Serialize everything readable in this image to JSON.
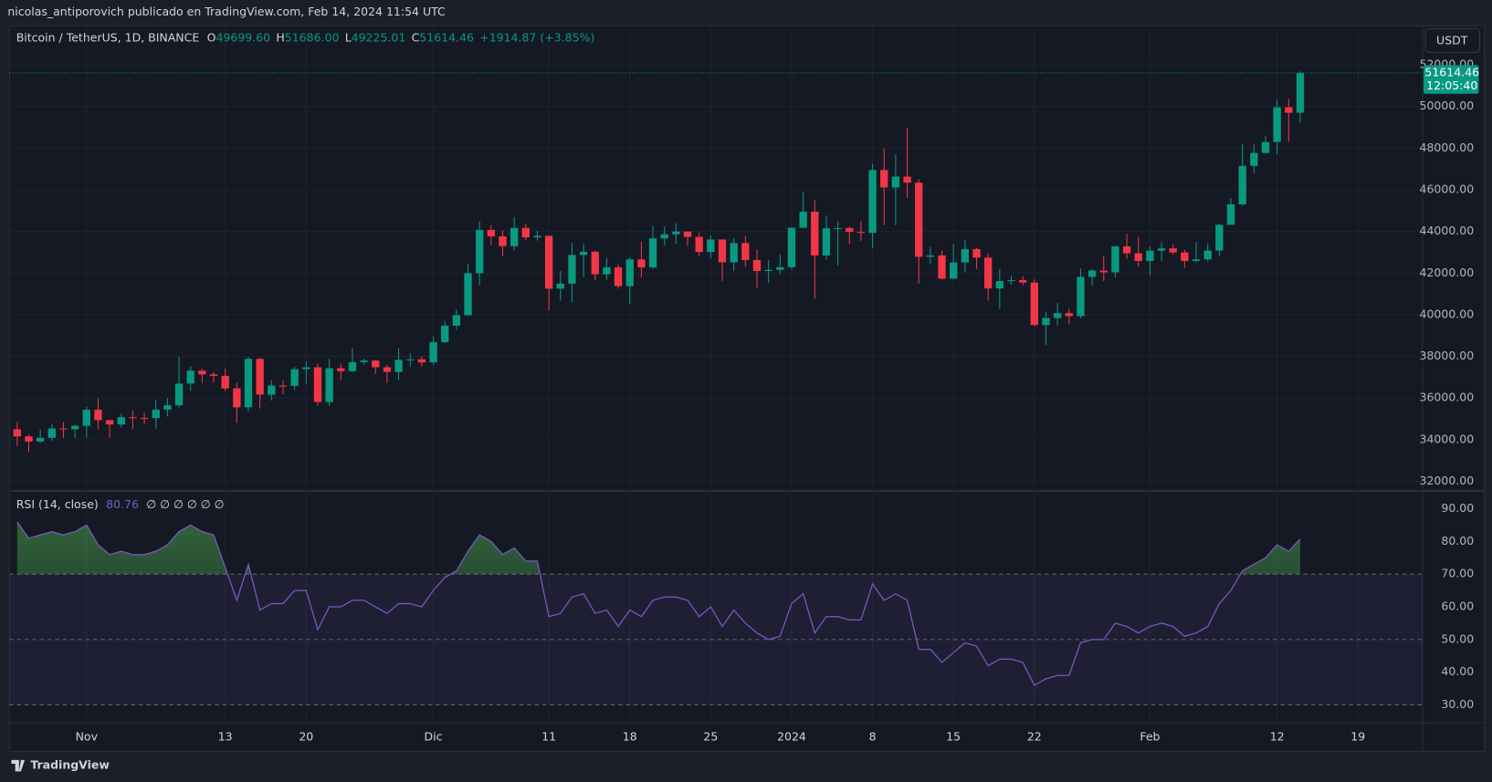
{
  "page": {
    "header": "nicolas_antiporovich publicado en TradingView.com, Feb 14, 2024 11:54 UTC",
    "footer": "TradingView",
    "currency": "USDT"
  },
  "chart_data": [
    {
      "type": "candlestick",
      "symbol": "Bitcoin / TetherUS, 1D, BINANCE",
      "ohlc_header": [
        {
          "key": "O",
          "value": "49699.60"
        },
        {
          "key": "H",
          "value": "51686.00"
        },
        {
          "key": "L",
          "value": "49225.01"
        },
        {
          "key": "C",
          "value": "51614.46"
        }
      ],
      "change": "+1914.87 (+3.85%)",
      "countdown": "12:05:40",
      "up_color": "#089981",
      "down_color": "#f23645",
      "xlim": [
        -0.5,
        121.5
      ],
      "xticks": [
        {
          "value": 6,
          "label": "Nov"
        },
        {
          "value": 18,
          "label": "13"
        },
        {
          "value": 25,
          "label": "20"
        },
        {
          "value": 36,
          "label": "Dic"
        },
        {
          "value": 46,
          "label": "11"
        },
        {
          "value": 53,
          "label": "18"
        },
        {
          "value": 60,
          "label": "25"
        },
        {
          "value": 67,
          "label": "2024"
        },
        {
          "value": 74,
          "label": "8"
        },
        {
          "value": 81,
          "label": "15"
        },
        {
          "value": 88,
          "label": "22"
        },
        {
          "value": 98,
          "label": "Feb"
        },
        {
          "value": 109,
          "label": "12"
        },
        {
          "value": 116,
          "label": "19"
        }
      ],
      "ylim": [
        31589,
        53872
      ],
      "yticks": [
        {
          "value": 32000,
          "label": "32000.00"
        },
        {
          "value": 34000,
          "label": "34000.00"
        },
        {
          "value": 36000,
          "label": "36000.00"
        },
        {
          "value": 38000,
          "label": "38000.00"
        },
        {
          "value": 40000,
          "label": "40000.00"
        },
        {
          "value": 42000,
          "label": "42000.00"
        },
        {
          "value": 44000,
          "label": "44000.00"
        },
        {
          "value": 46000,
          "label": "46000.00"
        },
        {
          "value": 48000,
          "label": "48000.00"
        },
        {
          "value": 50000,
          "label": "50000.00"
        },
        {
          "value": 52000,
          "label": "52000.00"
        }
      ],
      "grid": true,
      "ohlc": [
        [
          34502,
          34850,
          33700,
          34156
        ],
        [
          34156,
          34250,
          33400,
          33910
        ],
        [
          33910,
          34480,
          33850,
          34089
        ],
        [
          34089,
          34750,
          33930,
          34538
        ],
        [
          34538,
          34850,
          34080,
          34502
        ],
        [
          34502,
          34720,
          34080,
          34667
        ],
        [
          34667,
          35580,
          34100,
          35437
        ],
        [
          35437,
          35980,
          34500,
          34938
        ],
        [
          34938,
          34940,
          34100,
          34732
        ],
        [
          34732,
          35250,
          34580,
          35082
        ],
        [
          35082,
          35400,
          34520,
          35049
        ],
        [
          35049,
          35280,
          34750,
          35037
        ],
        [
          35037,
          35900,
          34530,
          35443
        ],
        [
          35443,
          35990,
          35120,
          35655
        ],
        [
          35655,
          37980,
          35540,
          36693
        ],
        [
          36693,
          37530,
          36340,
          37313
        ],
        [
          37313,
          37400,
          36720,
          37138
        ],
        [
          37138,
          37240,
          36750,
          37065
        ],
        [
          37065,
          37420,
          36340,
          36462
        ],
        [
          36462,
          36750,
          34800,
          35552
        ],
        [
          35552,
          37980,
          35360,
          37880
        ],
        [
          37880,
          37930,
          35500,
          36164
        ],
        [
          36164,
          36850,
          35880,
          36596
        ],
        [
          36596,
          36845,
          36180,
          36585
        ],
        [
          36585,
          37500,
          36390,
          37386
        ],
        [
          37386,
          37750,
          36700,
          37476
        ],
        [
          37476,
          37650,
          35630,
          35813
        ],
        [
          35813,
          37880,
          35630,
          37432
        ],
        [
          37432,
          37650,
          36870,
          37289
        ],
        [
          37289,
          38420,
          37250,
          37720
        ],
        [
          37720,
          37890,
          37600,
          37797
        ],
        [
          37797,
          37840,
          37150,
          37479
        ],
        [
          37479,
          37590,
          36720,
          37255
        ],
        [
          37255,
          38380,
          36870,
          37832
        ],
        [
          37832,
          38150,
          37500,
          37858
        ],
        [
          37858,
          38000,
          37500,
          37712
        ],
        [
          37712,
          38960,
          37600,
          38688
        ],
        [
          38688,
          39700,
          38650,
          39476
        ],
        [
          39476,
          40250,
          39280,
          39978
        ],
        [
          39978,
          42420,
          39960,
          41991
        ],
        [
          41991,
          44490,
          41420,
          44073
        ],
        [
          44073,
          44300,
          43340,
          43762
        ],
        [
          43762,
          44050,
          42820,
          43293
        ],
        [
          43293,
          44700,
          43080,
          44170
        ],
        [
          44170,
          44370,
          43580,
          43714
        ],
        [
          43714,
          44030,
          43560,
          43789
        ],
        [
          43789,
          43800,
          40220,
          41253
        ],
        [
          41253,
          42100,
          40680,
          41492
        ],
        [
          41492,
          43430,
          40600,
          42869
        ],
        [
          42869,
          43420,
          41800,
          43023
        ],
        [
          43023,
          43090,
          41660,
          41941
        ],
        [
          41941,
          42720,
          41680,
          42278
        ],
        [
          42278,
          42420,
          41250,
          41374
        ],
        [
          41374,
          42760,
          40520,
          42657
        ],
        [
          42657,
          43500,
          41790,
          42272
        ],
        [
          42272,
          44280,
          42200,
          43668
        ],
        [
          43668,
          44240,
          43330,
          43861
        ],
        [
          43861,
          44400,
          43400,
          43998
        ],
        [
          43998,
          43950,
          43300,
          43739
        ],
        [
          43739,
          43950,
          42800,
          43016
        ],
        [
          43016,
          43800,
          42720,
          43614
        ],
        [
          43614,
          43600,
          41620,
          42520
        ],
        [
          42520,
          43680,
          42100,
          43442
        ],
        [
          43442,
          43800,
          42300,
          42627
        ],
        [
          42627,
          43130,
          41300,
          42099
        ],
        [
          42099,
          42620,
          41520,
          42156
        ],
        [
          42156,
          42900,
          41950,
          42283
        ],
        [
          42283,
          44180,
          42180,
          44179
        ],
        [
          44179,
          45880,
          44150,
          44946
        ],
        [
          44946,
          45500,
          40750,
          42845
        ],
        [
          42845,
          44770,
          42630,
          44151
        ],
        [
          44151,
          44500,
          42350,
          44162
        ],
        [
          44162,
          44240,
          43400,
          43974
        ],
        [
          43974,
          44500,
          43550,
          43929
        ],
        [
          43929,
          47250,
          43200,
          46951
        ],
        [
          46951,
          47990,
          44300,
          46110
        ],
        [
          46110,
          47700,
          44300,
          46633
        ],
        [
          46633,
          48970,
          45600,
          46340
        ],
        [
          46340,
          46500,
          41500,
          42782
        ],
        [
          42782,
          43260,
          42440,
          42847
        ],
        [
          42847,
          43080,
          41700,
          41732
        ],
        [
          41732,
          43400,
          41720,
          42511
        ],
        [
          42511,
          43580,
          42050,
          43154
        ],
        [
          43154,
          43200,
          42200,
          42742
        ],
        [
          42742,
          42930,
          40680,
          41262
        ],
        [
          41262,
          42200,
          40280,
          41618
        ],
        [
          41618,
          41870,
          41440,
          41665
        ],
        [
          41665,
          41860,
          41400,
          41545
        ],
        [
          41545,
          41700,
          39430,
          39507
        ],
        [
          39507,
          40130,
          38550,
          39845
        ],
        [
          39845,
          40560,
          39480,
          40077
        ],
        [
          40077,
          40290,
          39550,
          39933
        ],
        [
          39933,
          42220,
          39830,
          41816
        ],
        [
          41816,
          42200,
          41390,
          42120
        ],
        [
          42120,
          42840,
          41620,
          42035
        ],
        [
          42035,
          43300,
          41800,
          43288
        ],
        [
          43288,
          43880,
          42680,
          42952
        ],
        [
          42952,
          43750,
          42300,
          42582
        ],
        [
          42582,
          43290,
          41880,
          43075
        ],
        [
          43075,
          43500,
          42580,
          43185
        ],
        [
          43185,
          43380,
          42880,
          42992
        ],
        [
          42992,
          43120,
          42260,
          42583
        ],
        [
          42583,
          43500,
          42500,
          42658
        ],
        [
          42658,
          43420,
          42560,
          43084
        ],
        [
          43084,
          44380,
          42800,
          44318
        ],
        [
          44318,
          45600,
          44330,
          45301
        ],
        [
          45301,
          48200,
          45240,
          47147
        ],
        [
          47147,
          48170,
          46800,
          47771
        ],
        [
          47771,
          48580,
          47730,
          48293
        ],
        [
          48293,
          50340,
          47690,
          49958
        ],
        [
          49958,
          50370,
          48300,
          49699
        ],
        [
          49699.6,
          51686,
          49225.01,
          51614.46
        ]
      ]
    },
    {
      "type": "line",
      "title": "RSI (14, close)",
      "extra": "∅ ∅ ∅ ∅ ∅ ∅",
      "color": "#7e57c2",
      "xlim": [
        -0.5,
        121.5
      ],
      "ylim": [
        24.5,
        95.2
      ],
      "yticks": [
        {
          "value": 30,
          "label": "30.00"
        },
        {
          "value": 40,
          "label": "40.00"
        },
        {
          "value": 50,
          "label": "50.00"
        },
        {
          "value": 60,
          "label": "60.00"
        },
        {
          "value": 70,
          "label": "70.00"
        },
        {
          "value": 80,
          "label": "80.00"
        },
        {
          "value": 90,
          "label": "90.00"
        }
      ],
      "bands": [
        30,
        50,
        70
      ],
      "values": [
        86,
        81,
        82,
        83,
        82,
        83,
        85,
        79,
        76,
        77,
        76,
        76,
        77,
        79,
        83,
        85,
        83,
        82,
        72,
        62,
        73,
        59,
        61,
        61,
        65,
        65,
        53,
        60,
        60,
        62,
        62,
        60,
        58,
        61,
        61,
        60,
        65,
        69,
        71,
        77,
        82,
        80,
        76,
        78,
        74,
        74,
        57,
        58,
        63,
        64,
        58,
        59,
        54,
        59,
        57,
        62,
        63,
        63,
        62,
        57,
        60,
        54,
        59,
        55,
        52,
        50,
        51,
        61,
        64,
        52,
        57,
        57,
        56,
        56,
        67,
        62,
        64,
        62,
        47,
        47,
        43,
        46,
        49,
        48,
        42,
        44,
        44,
        43,
        36,
        38,
        39,
        39,
        49,
        50,
        50,
        55,
        54,
        52,
        54,
        55,
        54,
        51,
        52,
        54,
        61,
        65,
        71,
        73,
        75,
        79,
        77,
        80.76
      ]
    }
  ]
}
